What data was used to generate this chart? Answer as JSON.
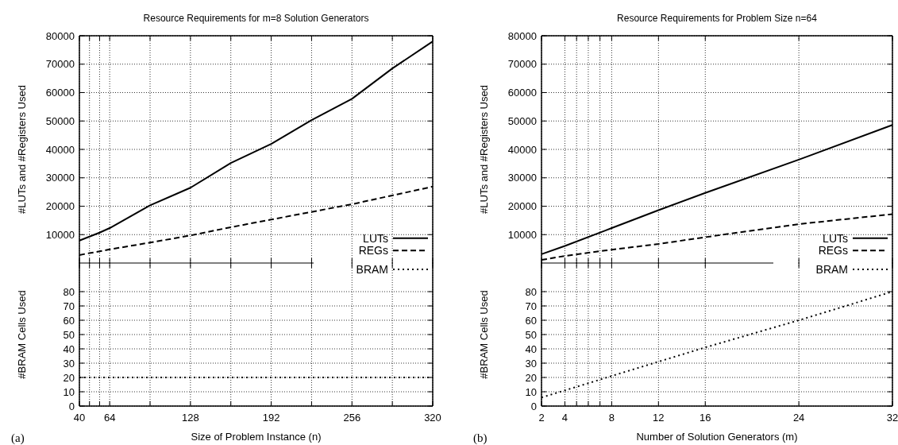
{
  "chart_data": [
    {
      "type": "line",
      "title": "Resource Requirements for m=8 Solution Generators",
      "ylabel": "#LUTs and #Registers Used",
      "x": [
        40,
        48,
        56,
        64,
        96,
        128,
        160,
        192,
        224,
        256,
        288,
        320
      ],
      "xlim": [
        40,
        320
      ],
      "xticks": [
        40,
        {
          "value": 48,
          "label": null
        },
        {
          "value": 56,
          "label": null
        },
        64,
        {
          "value": 96,
          "label": null
        },
        128,
        {
          "value": 160,
          "label": null
        },
        192,
        {
          "value": 224,
          "label": null
        },
        256,
        {
          "value": 288,
          "label": null
        },
        320
      ],
      "ylim": [
        0,
        80000
      ],
      "yticks": [
        10000,
        20000,
        30000,
        40000,
        50000,
        60000,
        70000,
        80000
      ],
      "grid": true,
      "legend": "bottom right",
      "tick_labels": "y",
      "series": [
        {
          "name": "LUTs",
          "color": "#000000",
          "line_style": "solid",
          "values": [
            7900,
            9300,
            10700,
            12300,
            20300,
            26500,
            35200,
            41900,
            50300,
            57800,
            68500,
            78000
          ]
        },
        {
          "name": "REGs",
          "color": "#000000",
          "line_style": "dashed",
          "values": [
            2800,
            3500,
            4100,
            4800,
            7200,
            9700,
            12600,
            15300,
            18000,
            20700,
            23800,
            26900
          ]
        }
      ]
    },
    {
      "type": "line",
      "xlabel": "Size of Problem Instance (n)",
      "ylabel": "#BRAM Cells Used",
      "annotations": [
        "(a)"
      ],
      "x": [
        40,
        48,
        56,
        64,
        96,
        128,
        160,
        192,
        224,
        256,
        288,
        320
      ],
      "xlim": [
        40,
        320
      ],
      "xticks": [
        40,
        {
          "value": 48,
          "label": null
        },
        {
          "value": 56,
          "label": null
        },
        64,
        {
          "value": 96,
          "label": null
        },
        128,
        {
          "value": 160,
          "label": null
        },
        192,
        {
          "value": 224,
          "label": null
        },
        256,
        {
          "value": 288,
          "label": null
        },
        320
      ],
      "ylim": [
        0,
        100
      ],
      "yticks": [
        0,
        10,
        20,
        30,
        40,
        50,
        60,
        70,
        80
      ],
      "grid": true,
      "legend": "top right",
      "series": [
        {
          "name": "BRAM",
          "color": "#000000",
          "line_style": "dotted",
          "values": [
            20,
            20,
            20,
            20,
            20,
            20,
            20,
            20,
            20,
            20,
            20,
            20
          ]
        }
      ]
    },
    {
      "type": "line",
      "title": "Resource Requirements for Problem Size n=64",
      "ylabel": "#LUTs and #Registers Used",
      "x": [
        2,
        4,
        8,
        12,
        16,
        24,
        32
      ],
      "xlim": [
        2,
        32
      ],
      "xticks": [
        2,
        4,
        {
          "value": 5,
          "label": null
        },
        {
          "value": 6,
          "label": null
        },
        {
          "value": 7,
          "label": null
        },
        8,
        12,
        16,
        24,
        32
      ],
      "ylim": [
        0,
        80000
      ],
      "yticks": [
        10000,
        20000,
        30000,
        40000,
        50000,
        60000,
        70000,
        80000
      ],
      "grid": true,
      "legend": "bottom right",
      "tick_labels": "y",
      "series": [
        {
          "name": "LUTs",
          "color": "#000000",
          "line_style": "solid",
          "values": [
            3100,
            6000,
            12300,
            18600,
            24700,
            36400,
            48600
          ]
        },
        {
          "name": "REGs",
          "color": "#000000",
          "line_style": "dashed",
          "values": [
            1100,
            2500,
            4700,
            6700,
            9100,
            13700,
            17200
          ]
        }
      ]
    },
    {
      "type": "line",
      "xlabel": "Number of Solution Generators (m)",
      "ylabel": "#BRAM Cells Used",
      "annotations": [
        "(b)"
      ],
      "x": [
        2,
        4,
        8,
        12,
        16,
        24,
        32
      ],
      "xlim": [
        2,
        32
      ],
      "xticks": [
        2,
        4,
        {
          "value": 5,
          "label": null
        },
        {
          "value": 6,
          "label": null
        },
        {
          "value": 7,
          "label": null
        },
        8,
        12,
        16,
        24,
        32
      ],
      "ylim": [
        0,
        100
      ],
      "yticks": [
        0,
        10,
        20,
        30,
        40,
        50,
        60,
        70,
        80
      ],
      "grid": true,
      "legend": "top right",
      "series": [
        {
          "name": "BRAM",
          "color": "#000000",
          "line_style": "dotted",
          "values": [
            6,
            11,
            21,
            31,
            41,
            60,
            80
          ]
        }
      ]
    }
  ]
}
